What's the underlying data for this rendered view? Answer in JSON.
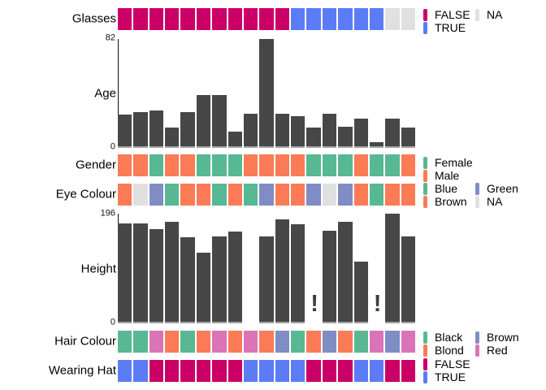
{
  "chart_data": [
    {
      "id": "glasses",
      "type": "strip",
      "label": "Glasses",
      "values": [
        "FALSE",
        "FALSE",
        "FALSE",
        "FALSE",
        "FALSE",
        "FALSE",
        "FALSE",
        "FALSE",
        "FALSE",
        "FALSE",
        "FALSE",
        "TRUE",
        "TRUE",
        "TRUE",
        "TRUE",
        "TRUE",
        "TRUE",
        "NA",
        "NA"
      ],
      "color_map": {
        "FALSE": "#CB0067",
        "TRUE": "#5B7CF5",
        "NA": "#E0E0E0"
      },
      "legend": [
        [
          {
            "label": "FALSE",
            "color": "#CB0067"
          },
          {
            "label": "TRUE",
            "color": "#5B7CF5"
          }
        ],
        [
          {
            "label": "NA",
            "color": "#E0E0E0"
          }
        ]
      ]
    },
    {
      "id": "age",
      "type": "bar",
      "label": "Age",
      "ylim": [
        0,
        82
      ],
      "axis": {
        "top": "82",
        "bottom": "0"
      },
      "bar_color": "#474747",
      "values": [
        25,
        27,
        28,
        15,
        27,
        40,
        40,
        12,
        26,
        82,
        26,
        24,
        15,
        26,
        16,
        22,
        4,
        22,
        15
      ]
    },
    {
      "id": "gender",
      "type": "strip",
      "label": "Gender",
      "values": [
        "Male",
        "Male",
        "Female",
        "Male",
        "Male",
        "Female",
        "Female",
        "Female",
        "Male",
        "Male",
        "Male",
        "Male",
        "Female",
        "Female",
        "Female",
        "Male",
        "Female",
        "Female",
        "Male"
      ],
      "color_map": {
        "Female": "#57B893",
        "Male": "#FA7B56"
      },
      "legend": [
        [
          {
            "label": "Female",
            "color": "#57B893"
          },
          {
            "label": "Male",
            "color": "#FA7B56"
          }
        ]
      ]
    },
    {
      "id": "eye_colour",
      "type": "strip",
      "label": "Eye Colour",
      "values": [
        "Brown",
        "NA",
        "Green",
        "Blue",
        "Brown",
        "Brown",
        "Blue",
        "Brown",
        "Blue",
        "Green",
        "Brown",
        "Brown",
        "Green",
        "NA",
        "Green",
        "Brown",
        "Blue",
        "Brown",
        "Brown"
      ],
      "color_map": {
        "Blue": "#57B893",
        "Brown": "#FA7B56",
        "Green": "#7F8DC4",
        "NA": "#E0E0E0"
      },
      "legend": [
        [
          {
            "label": "Blue",
            "color": "#57B893"
          },
          {
            "label": "Brown",
            "color": "#FA7B56"
          }
        ],
        [
          {
            "label": "Green",
            "color": "#7F8DC4"
          },
          {
            "label": "NA",
            "color": "#E0E0E0"
          }
        ]
      ]
    },
    {
      "id": "height",
      "type": "bar",
      "label": "Height",
      "ylim": [
        0,
        196
      ],
      "axis": {
        "top": "196",
        "bottom": "0"
      },
      "bar_color": "#474747",
      "na_marker": "!",
      "values": [
        179,
        179,
        168,
        181,
        154,
        126,
        155,
        164,
        0,
        155,
        186,
        177,
        null,
        166,
        181,
        110,
        null,
        196,
        156
      ]
    },
    {
      "id": "hair_colour",
      "type": "strip",
      "label": "Hair Colour",
      "values": [
        "Black",
        "Black",
        "Red",
        "Blond",
        "Black",
        "Blond",
        "Red",
        "Blond",
        "Red",
        "Blond",
        "Brown",
        "Black",
        "Blond",
        "Brown",
        "Blond",
        "Black",
        "Red",
        "Brown",
        "Red"
      ],
      "color_map": {
        "Black": "#57B893",
        "Blond": "#FA7B56",
        "Brown": "#7F8DC4",
        "Red": "#DB73B7"
      },
      "legend": [
        [
          {
            "label": "Black",
            "color": "#57B893"
          },
          {
            "label": "Blond",
            "color": "#FA7B56"
          }
        ],
        [
          {
            "label": "Brown",
            "color": "#7F8DC4"
          },
          {
            "label": "Red",
            "color": "#DB73B7"
          }
        ]
      ]
    },
    {
      "id": "wearing_hat",
      "type": "strip",
      "label": "Wearing Hat",
      "values": [
        "TRUE",
        "TRUE",
        "FALSE",
        "FALSE",
        "FALSE",
        "FALSE",
        "FALSE",
        "FALSE",
        "TRUE",
        "TRUE",
        "TRUE",
        "TRUE",
        "FALSE",
        "FALSE",
        "FALSE",
        "TRUE",
        "TRUE",
        "FALSE",
        "FALSE"
      ],
      "color_map": {
        "FALSE": "#CB0067",
        "TRUE": "#5B7CF5"
      },
      "legend": [
        [
          {
            "label": "FALSE",
            "color": "#CB0067"
          },
          {
            "label": "TRUE",
            "color": "#5B7CF5"
          }
        ]
      ]
    }
  ],
  "palette": {
    "bar": "#474747",
    "bar_baseline": "#A3A3A3",
    "axis": "#111111",
    "false_magenta": "#CB0067",
    "true_blue": "#5B7CF5",
    "na_gray": "#E0E0E0",
    "green": "#57B893",
    "orange": "#FA7B56",
    "blue_purple": "#7F8DC4",
    "pink": "#DB73B7"
  }
}
